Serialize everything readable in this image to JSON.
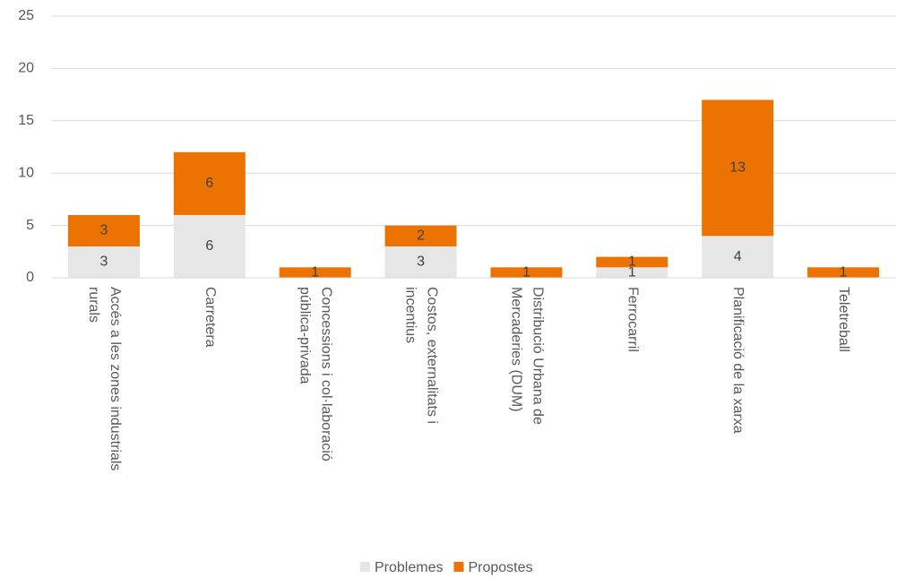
{
  "chart_data": {
    "type": "stacked_bar",
    "categories": [
      "Accés a les zones industrials rurals",
      "Carretera",
      "Concessions i col·laboració pública-privada",
      "Costos, externalitats i incentius",
      "Distribució Urbana de Mercaderies (DUM)",
      "Ferrocarril",
      "Planificació de la xarxa",
      "Teletreball"
    ],
    "series": [
      {
        "name": "Problemes",
        "color": "#e7e6e6",
        "values": [
          3,
          6,
          null,
          3,
          null,
          1,
          4,
          null
        ]
      },
      {
        "name": "Propostes",
        "color": "#ec7202",
        "values": [
          3,
          6,
          1,
          2,
          1,
          1,
          13,
          1
        ]
      }
    ],
    "ylim": [
      0,
      25
    ],
    "yticks": [
      0,
      5,
      10,
      15,
      20,
      25
    ],
    "grid": true,
    "legend": "bottom"
  }
}
